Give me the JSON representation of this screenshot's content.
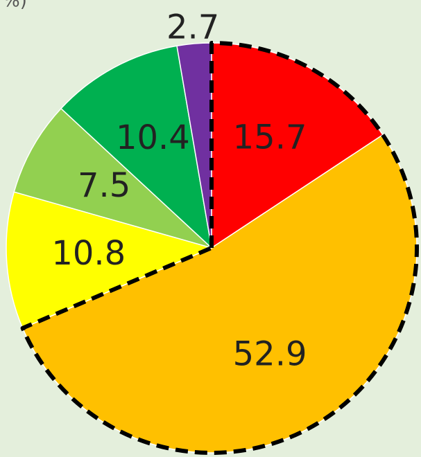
{
  "chart_data": {
    "type": "pie",
    "unit": "%)",
    "categories": [
      null,
      null,
      null,
      null,
      null,
      null
    ],
    "values": [
      15.7,
      52.9,
      10.8,
      7.5,
      10.4,
      2.7
    ],
    "colors": [
      "#ff0000",
      "#ffc000",
      "#ffff00",
      "#92d050",
      "#00b050",
      "#7030a0"
    ],
    "highlighted": [
      0,
      1
    ]
  }
}
